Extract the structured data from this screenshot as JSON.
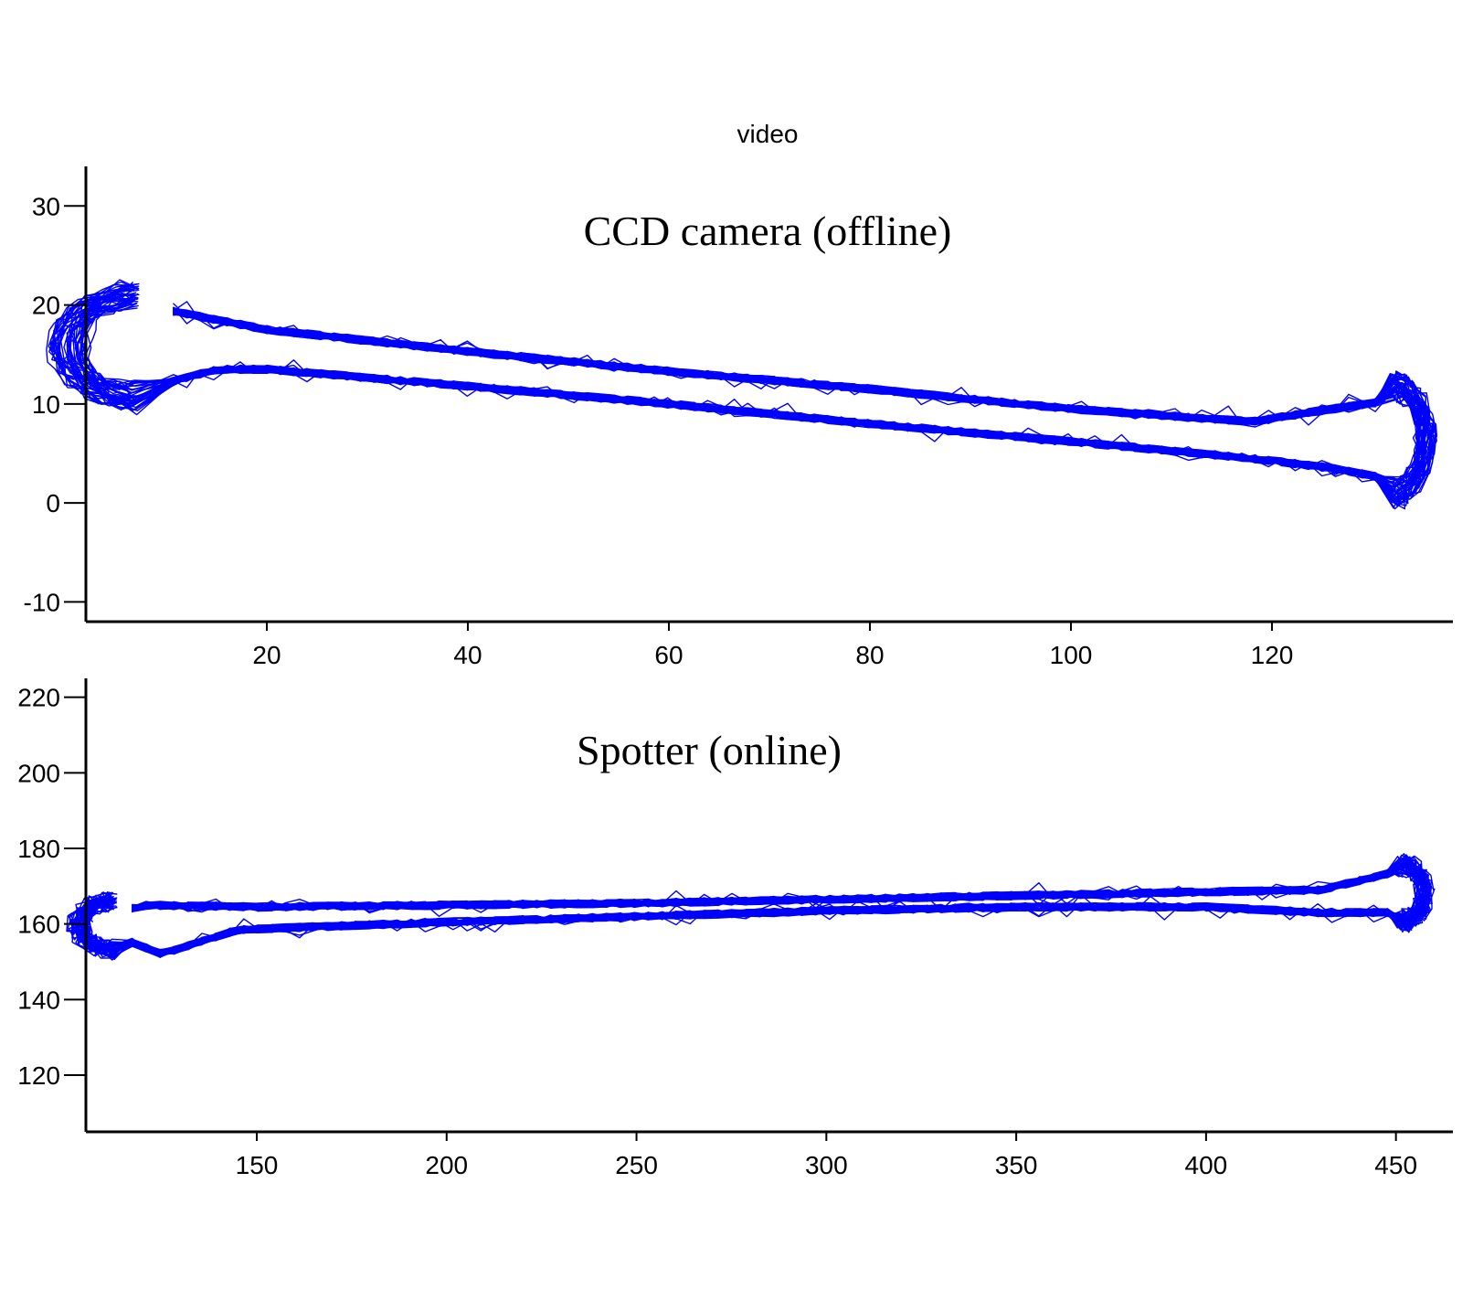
{
  "figure": {
    "title": "video"
  },
  "chart_data": [
    {
      "type": "line",
      "annotation": "CCD camera (offline)",
      "xlim": [
        2,
        138
      ],
      "ylim": [
        -12,
        34
      ],
      "xticks": [
        20,
        40,
        60,
        80,
        100,
        120
      ],
      "yticks": [
        -10,
        0,
        10,
        20,
        30
      ],
      "grid": false,
      "series": [
        {
          "color": "#0000ff",
          "description_of_path": "repeated back-and-forth trajectory",
          "upper_lane": {
            "x": [
              3,
              10,
              20,
              40,
              60,
              80,
              100,
              118,
              126,
              133
            ],
            "y": [
              17,
              19.5,
              17.5,
              15.3,
              13.3,
              11.5,
              9.5,
              8.2,
              9.5,
              10.5
            ]
          },
          "lower_lane": {
            "x": [
              8,
              15,
              20,
              40,
              60,
              80,
              100,
              118,
              126,
              134
            ],
            "y": [
              11.5,
              13.5,
              13.5,
              11.8,
              10,
              8,
              6.2,
              4.5,
              3.5,
              2
            ]
          }
        }
      ]
    },
    {
      "type": "line",
      "annotation": "Spotter (online)",
      "xlim": [
        105,
        465
      ],
      "ylim": [
        105,
        225
      ],
      "xticks": [
        150,
        200,
        250,
        300,
        350,
        400,
        450
      ],
      "yticks": [
        120,
        140,
        160,
        180,
        200,
        220
      ],
      "grid": false,
      "series": [
        {
          "color": "#0000ff",
          "description_of_path": "repeated back-and-forth trajectory",
          "upper_lane": {
            "x": [
              107,
              120,
              150,
              200,
              250,
              300,
              350,
              400,
              430,
              455
            ],
            "y": [
              161,
              165,
              164.5,
              165,
              165.5,
              166.5,
              167.5,
              168.5,
              169,
              175
            ]
          },
          "lower_lane": {
            "x": [
              110,
              125,
              145,
              200,
              250,
              300,
              350,
              400,
              430,
              455
            ],
            "y": [
              158,
              152,
              158.5,
              160.5,
              162,
              163.5,
              164.5,
              164.5,
              163,
              163
            ]
          }
        }
      ]
    }
  ]
}
